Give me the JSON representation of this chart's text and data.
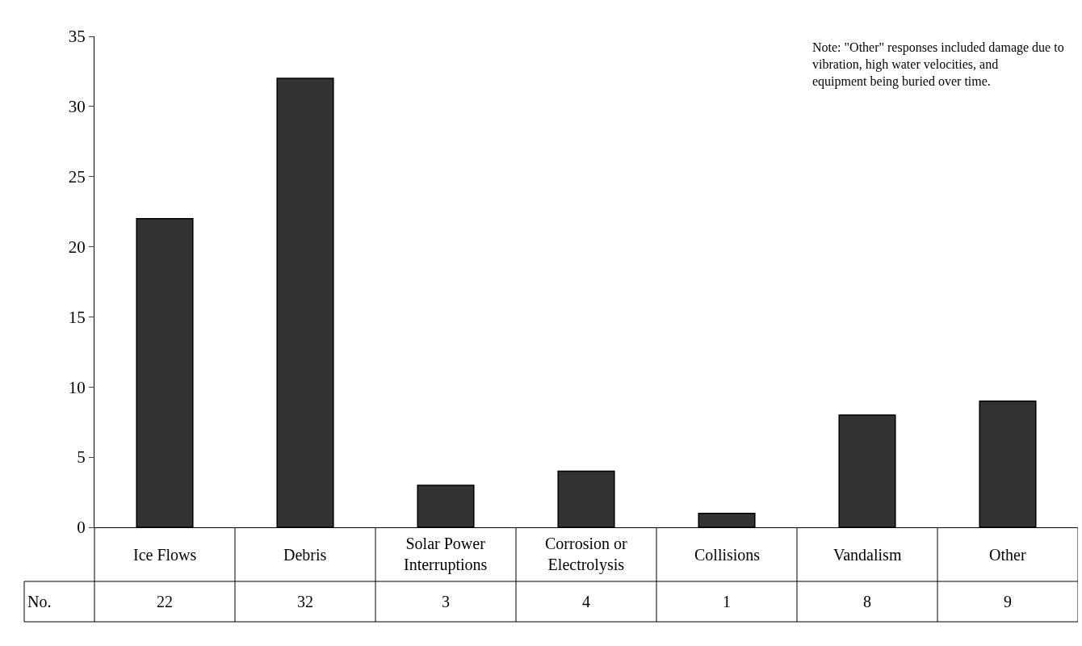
{
  "chart_data": {
    "type": "bar",
    "categories": [
      "Ice Flows",
      "Debris",
      "Solar Power Interruptions",
      "Corrosion or Electrolysis",
      "Collisions",
      "Vandalism",
      "Other"
    ],
    "series": [
      {
        "name": "No.",
        "color": "#333333",
        "values": [
          22,
          32,
          3,
          4,
          1,
          8,
          9
        ]
      }
    ],
    "ylim": [
      0,
      35
    ],
    "yticks": [
      0,
      5,
      10,
      15,
      20,
      25,
      30,
      35
    ],
    "legend": false,
    "data_labels": true,
    "annotations": [
      "Note: \"Other\" responses included damage due to vibration, high water velocities, and equipment being buried over time."
    ]
  }
}
